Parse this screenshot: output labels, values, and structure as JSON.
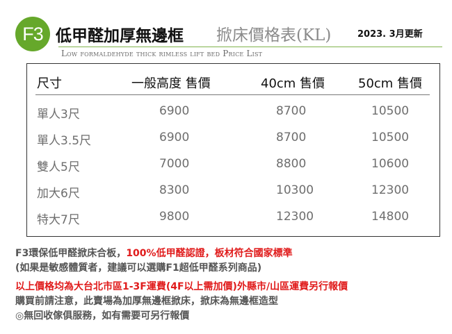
{
  "header": {
    "badge": "F3",
    "title_main": "低甲醛加厚無邊框",
    "title_sub": "掀床價格表(KL)",
    "date": "2023. 3月更新",
    "subtitle": "Low formaldehyde thick rimless lift bed Price List"
  },
  "table": {
    "headers": [
      "尺寸",
      "一般高度 售價",
      "40cm  售價",
      "50cm 售價"
    ],
    "rows": [
      {
        "size": "單人3尺",
        "normal": "6900",
        "h40": "8700",
        "h50": "10500"
      },
      {
        "size": "單人3.5尺",
        "normal": "6900",
        "h40": "8700",
        "h50": "10500"
      },
      {
        "size": "雙人5尺",
        "normal": "7000",
        "h40": "8800",
        "h50": "10600"
      },
      {
        "size": "加大6尺",
        "normal": "8300",
        "h40": "10300",
        "h50": "12300"
      },
      {
        "size": "特大7尺",
        "normal": "9800",
        "h40": "12300",
        "h50": "14800"
      }
    ]
  },
  "notes": {
    "line1_gray": "F3環保低甲醛掀床合板，",
    "line1_red": "100%低甲醛認證，板材符合國家標準",
    "line2": "(如果是敏感體質者，建議可以選購F1超低甲醛系列商品)",
    "line3": "以上價格均為大台北市區1-3F運費(4F以上需加價)外縣市/山區運費另行報價",
    "line4": "購買前請注意，此賣場為加厚無邊框掀床，掀床為無邊框造型",
    "line5": "◎無回收傢俱服務，如有需要可另行報價"
  },
  "colors": {
    "accent_green": "#66a82b",
    "note_red": "#e01b1b"
  }
}
